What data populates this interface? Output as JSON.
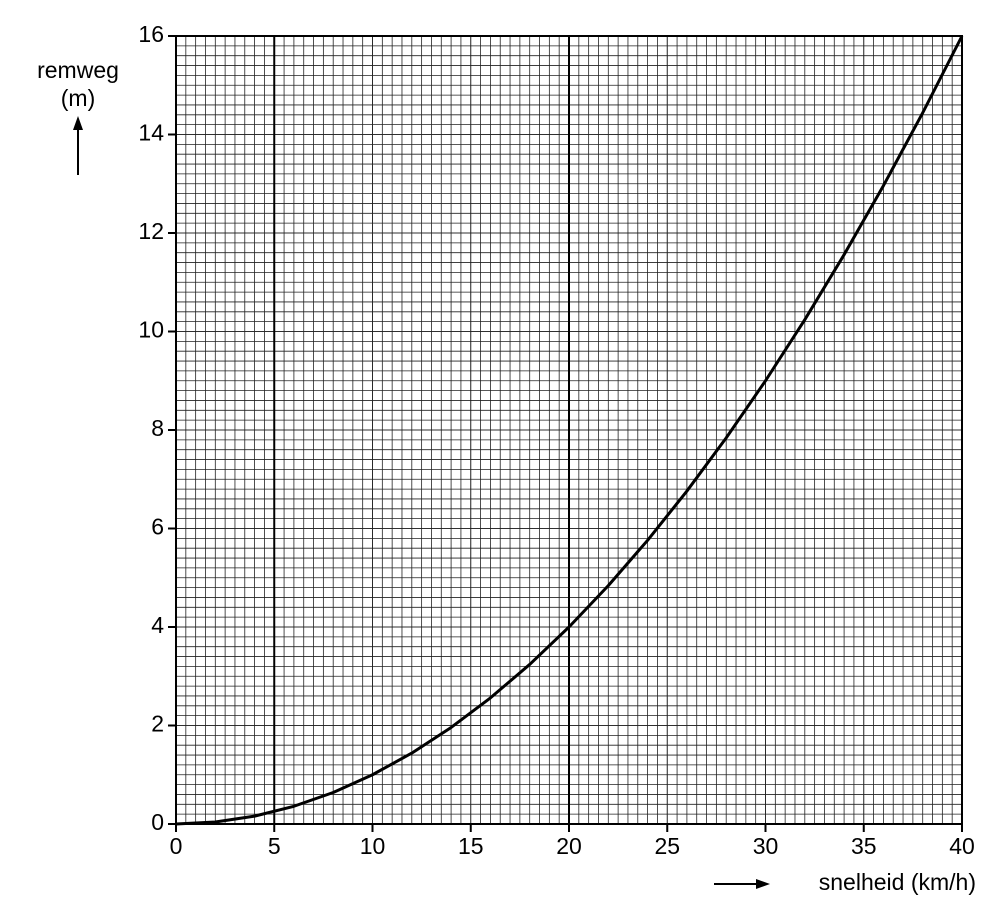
{
  "chart_data": {
    "type": "line",
    "y_label": [
      "remweg",
      "(m)"
    ],
    "x_label": "snelheid (km/h)",
    "x": [
      0,
      2,
      4,
      6,
      8,
      10,
      12,
      14,
      16,
      18,
      20,
      22,
      24,
      26,
      28,
      30,
      32,
      34,
      36,
      38,
      40
    ],
    "values": [
      0,
      0.04,
      0.16,
      0.36,
      0.64,
      1,
      1.44,
      1.96,
      2.56,
      3.24,
      4,
      4.84,
      5.76,
      6.76,
      7.84,
      9,
      10.24,
      11.56,
      12.96,
      14.44,
      16
    ],
    "color": "#000000",
    "xlim": [
      0,
      40
    ],
    "xticks": [
      0,
      5,
      10,
      15,
      20,
      25,
      30,
      35,
      40
    ],
    "ylim": [
      0,
      16
    ],
    "yticks": [
      0,
      2,
      4,
      6,
      8,
      10,
      12,
      14,
      16
    ],
    "grid": true,
    "minor_divisions": 10,
    "reference_lines_x": [
      5,
      20
    ]
  }
}
